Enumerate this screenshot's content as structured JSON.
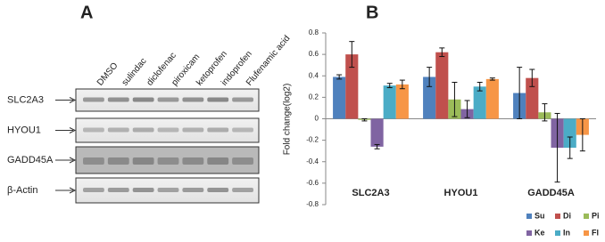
{
  "panel_a": {
    "label": "A",
    "lanes": [
      "DMSO",
      "sulindac",
      "diclofenac",
      "piroxicam",
      "ketoprofen",
      "indoprofen",
      "Flufenamic acid"
    ],
    "proteins": [
      "SLC2A3",
      "HYOU1",
      "GADD45A",
      "β-Actin"
    ]
  },
  "chart_data": {
    "type": "bar",
    "label": "B",
    "y_label": "Fold change(log2)",
    "categories": [
      "SLC2A3",
      "HYOU1",
      "GADD45A"
    ],
    "series": [
      {
        "name": "Su",
        "color": "#4f81bd",
        "values": [
          0.39,
          0.39,
          0.24
        ],
        "errors": [
          0.02,
          0.09,
          0.24
        ]
      },
      {
        "name": "Di",
        "color": "#c0504d",
        "values": [
          0.6,
          0.62,
          0.38
        ],
        "errors": [
          0.12,
          0.04,
          0.08
        ]
      },
      {
        "name": "Pi",
        "color": "#9bbb59",
        "values": [
          -0.01,
          0.18,
          0.06
        ],
        "errors": [
          0.01,
          0.16,
          0.08
        ]
      },
      {
        "name": "Ke",
        "color": "#8064a2",
        "values": [
          -0.26,
          0.09,
          -0.27
        ],
        "errors": [
          0.02,
          0.08,
          0.32
        ]
      },
      {
        "name": "In",
        "color": "#4bacc6",
        "values": [
          0.31,
          0.3,
          -0.27
        ],
        "errors": [
          0.02,
          0.04,
          0.1
        ]
      },
      {
        "name": "Fl",
        "color": "#f79646",
        "values": [
          0.32,
          0.37,
          -0.15
        ],
        "errors": [
          0.04,
          0.01,
          0.15
        ]
      }
    ],
    "ylim": [
      -0.8,
      0.8
    ],
    "yticks": [
      -0.8,
      -0.6,
      -0.4,
      -0.2,
      0,
      0.2,
      0.4,
      0.6,
      0.8
    ],
    "legend": "bottom-right"
  }
}
